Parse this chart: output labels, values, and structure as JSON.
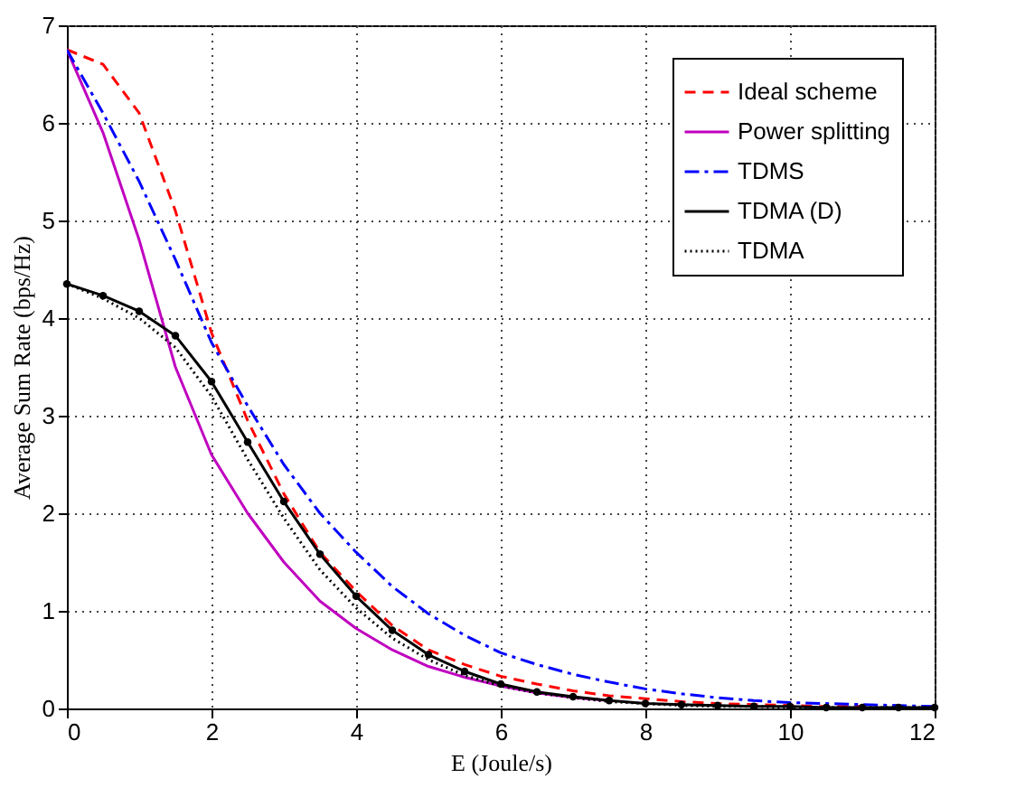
{
  "chart_data": {
    "type": "line",
    "xlabel": "E (Joule/s)",
    "ylabel": "Average Sum Rate (bps/Hz)",
    "x": [
      0,
      0.5,
      1,
      1.5,
      2,
      2.5,
      3,
      3.5,
      4,
      4.5,
      5,
      5.5,
      6,
      6.5,
      7,
      7.5,
      8,
      8.5,
      9,
      9.5,
      10,
      10.5,
      11,
      11.5,
      12
    ],
    "xlim": [
      0,
      12
    ],
    "xticks": [
      0,
      2,
      4,
      6,
      8,
      10,
      12
    ],
    "ylim": [
      0,
      7
    ],
    "yticks": [
      0,
      1,
      2,
      3,
      4,
      5,
      6,
      7
    ],
    "grid": true,
    "legend": "top right",
    "series": [
      {
        "name": "Ideal scheme",
        "color": "#ff0000",
        "line_style": "dashed",
        "marker": "none",
        "values": [
          6.75,
          6.6,
          6.1,
          5.1,
          3.85,
          2.95,
          2.2,
          1.6,
          1.2,
          0.85,
          0.6,
          0.45,
          0.33,
          0.25,
          0.18,
          0.13,
          0.1,
          0.07,
          0.05,
          0.04,
          0.03,
          0.02,
          0.02,
          null,
          null
        ]
      },
      {
        "name": "Power splitting",
        "color": "#bf00bf",
        "line_style": "solid",
        "marker": "none",
        "values": [
          6.75,
          5.9,
          4.8,
          3.5,
          2.6,
          2.0,
          1.5,
          1.1,
          0.82,
          0.6,
          0.43,
          0.32,
          0.23,
          0.16,
          0.11,
          0.08,
          null,
          null,
          null,
          null,
          null,
          null,
          null,
          null,
          null
        ]
      },
      {
        "name": "TDMS",
        "color": "#0000ff",
        "line_style": "dashdot",
        "marker": "none",
        "values": [
          6.75,
          6.1,
          5.4,
          4.6,
          3.75,
          3.1,
          2.5,
          2.0,
          1.6,
          1.25,
          0.97,
          0.75,
          0.57,
          0.45,
          0.35,
          0.27,
          0.2,
          0.15,
          0.11,
          0.08,
          0.06,
          0.05,
          0.04,
          0.03,
          0.02
        ]
      },
      {
        "name": "TDMA (D)",
        "color": "#000000",
        "line_style": "solid",
        "marker": "circle",
        "values": [
          4.35,
          4.23,
          4.07,
          3.82,
          3.35,
          2.73,
          2.12,
          1.58,
          1.15,
          0.8,
          0.55,
          0.38,
          0.25,
          0.17,
          0.12,
          0.08,
          0.05,
          0.04,
          0.03,
          0.02,
          0.02,
          0.01,
          0.01,
          0.01,
          0.01
        ]
      },
      {
        "name": "TDMA",
        "color": "#000000",
        "line_style": "dotted",
        "marker": "none",
        "values": [
          4.35,
          4.2,
          4.0,
          3.7,
          3.2,
          2.55,
          1.95,
          1.42,
          1.03,
          0.72,
          0.5,
          0.34,
          0.23,
          0.16,
          0.11,
          0.07,
          0.05,
          0.03,
          0.02,
          0.02,
          0.01,
          0.01,
          0.01,
          0.01,
          0.01
        ]
      }
    ]
  }
}
